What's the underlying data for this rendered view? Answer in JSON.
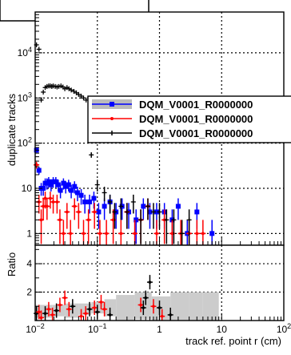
{
  "chart_data": {
    "type": "scatter",
    "x_scale": "log",
    "xlim": [
      0.01,
      100
    ],
    "x_ticks": [
      {
        "value": 0.01,
        "base": "10",
        "exp": "−2"
      },
      {
        "value": 0.1,
        "base": "10",
        "exp": "−1"
      },
      {
        "value": 1,
        "base": "1",
        "exp": ""
      },
      {
        "value": 10,
        "base": "10",
        "exp": ""
      },
      {
        "value": 100,
        "base": "10",
        "exp": "2"
      }
    ],
    "xlabel": "track ref. point r (cm)",
    "grid": true,
    "top": {
      "y_scale": "log",
      "ylim": [
        0.55,
        80000
      ],
      "ylabel": "duplicate tracks",
      "y_ticks": [
        {
          "value": 1,
          "base": "1",
          "exp": ""
        },
        {
          "value": 10,
          "base": "10",
          "exp": ""
        },
        {
          "value": 100,
          "base": "10",
          "exp": "2"
        },
        {
          "value": 1000,
          "base": "10",
          "exp": "3"
        },
        {
          "value": 10000,
          "base": "10",
          "exp": "4"
        }
      ],
      "series": [
        {
          "name": "DQM_V0001_R0000000",
          "color": "#0000ff",
          "marker": "square",
          "x": [
            0.0105,
            0.0115,
            0.0125,
            0.0135,
            0.0145,
            0.0155,
            0.0165,
            0.018,
            0.0195,
            0.0215,
            0.0235,
            0.0255,
            0.0285,
            0.031,
            0.0345,
            0.038,
            0.043,
            0.048,
            0.055,
            0.063,
            0.075,
            0.088,
            0.105,
            0.13,
            0.16,
            0.2,
            0.25,
            0.32,
            0.42,
            0.55,
            0.7,
            0.9,
            1.2,
            1.6,
            2.0,
            2.8,
            4.0,
            7.0
          ],
          "y": [
            70,
            25,
            10,
            10,
            13,
            13,
            14,
            12,
            14,
            14,
            12,
            9,
            13,
            11,
            12,
            9,
            11,
            8,
            7,
            5,
            5,
            6,
            3,
            4,
            5,
            3,
            4,
            3,
            2,
            4,
            3,
            3,
            3,
            2,
            4,
            1,
            3,
            1
          ]
        },
        {
          "name": "DQM_V0001_R0000000",
          "color": "#ff0000",
          "marker": "dot",
          "x": [
            0.0105,
            0.0115,
            0.0125,
            0.0135,
            0.0145,
            0.0155,
            0.0175,
            0.0195,
            0.0225,
            0.025,
            0.0285,
            0.0325,
            0.037,
            0.043,
            0.05,
            0.06,
            0.072,
            0.09,
            0.11,
            0.14,
            0.18,
            0.24,
            0.3,
            0.4,
            0.5,
            0.65,
            0.9,
            1.2,
            1.6,
            2.2,
            3.0,
            4.0,
            5.0
          ],
          "y": [
            33,
            5,
            2,
            4,
            6,
            4,
            6,
            5,
            5,
            2,
            1,
            3,
            1,
            4,
            3,
            1,
            2,
            3,
            1,
            1,
            2,
            1,
            3,
            1,
            2,
            4,
            1,
            2,
            1,
            1,
            1,
            1,
            1
          ]
        },
        {
          "name": "DQM_V0001_R0000000",
          "color": "#000000",
          "marker": "plus",
          "x": [
            0.0105,
            0.0115,
            0.0125,
            0.0135,
            0.0145,
            0.0155,
            0.0165,
            0.0175,
            0.0185,
            0.0195,
            0.021,
            0.0225,
            0.024,
            0.026,
            0.028,
            0.03,
            0.0325,
            0.035,
            0.038,
            0.042,
            0.046,
            0.05,
            0.055,
            0.06,
            0.066,
            0.08,
            0.1,
            0.13,
            0.16,
            0.19,
            0.24,
            0.3,
            0.38,
            0.5,
            0.65,
            0.8,
            1.0,
            1.3,
            1.7,
            2.3,
            3.0
          ],
          "y": [
            15000,
            12000,
            900,
            1350,
            1700,
            1800,
            1850,
            1850,
            1800,
            1850,
            1800,
            1750,
            1800,
            1850,
            1750,
            1600,
            1700,
            1600,
            1500,
            1400,
            1300,
            1200,
            1100,
            1000,
            900,
            55,
            12,
            8,
            5,
            3,
            4,
            3,
            5,
            2,
            4,
            3,
            3,
            2,
            2,
            1,
            2
          ]
        }
      ]
    },
    "ratio": {
      "ylabel": "Ratio",
      "ylim": [
        0,
        5.3
      ],
      "y_ticks": [
        2,
        4
      ],
      "band_color": "#cccccc",
      "points": [
        {
          "x": 0.0105,
          "y": 0.5,
          "color": "#000000"
        },
        {
          "x": 0.0115,
          "y": 0.6,
          "color": "#ff0000"
        },
        {
          "x": 0.0125,
          "y": 0.2,
          "color": "#ff0000"
        },
        {
          "x": 0.0145,
          "y": 0.5,
          "color": "#000000"
        },
        {
          "x": 0.0165,
          "y": 0.8,
          "color": "#ff0000"
        },
        {
          "x": 0.019,
          "y": 0.4,
          "color": "#ff0000"
        },
        {
          "x": 0.022,
          "y": 0.7,
          "color": "#000000"
        },
        {
          "x": 0.025,
          "y": 1.1,
          "color": "#ff0000"
        },
        {
          "x": 0.03,
          "y": 1.6,
          "color": "#ff0000"
        },
        {
          "x": 0.035,
          "y": 0.8,
          "color": "#ff0000"
        },
        {
          "x": 0.04,
          "y": 1.0,
          "color": "#000000"
        },
        {
          "x": 0.055,
          "y": 0.3,
          "color": "#ff0000"
        },
        {
          "x": 0.065,
          "y": 0.5,
          "color": "#ff0000"
        },
        {
          "x": 0.075,
          "y": 0.8,
          "color": "#000000"
        },
        {
          "x": 0.09,
          "y": 0.9,
          "color": "#ff0000"
        },
        {
          "x": 0.1,
          "y": 0.6,
          "color": "#000000"
        },
        {
          "x": 0.115,
          "y": 1.3,
          "color": "#ff0000"
        },
        {
          "x": 0.13,
          "y": 0.8,
          "color": "#ff0000"
        },
        {
          "x": 0.16,
          "y": 0.4,
          "color": "#000000"
        },
        {
          "x": 0.5,
          "y": 1.1,
          "color": "#ff0000"
        },
        {
          "x": 0.55,
          "y": 0.9,
          "color": "#000000"
        },
        {
          "x": 0.6,
          "y": 1.6,
          "color": "#000000"
        },
        {
          "x": 0.7,
          "y": 2.7,
          "color": "#000000"
        },
        {
          "x": 0.8,
          "y": 1.0,
          "color": "#ff0000"
        },
        {
          "x": 1.0,
          "y": 0.9,
          "color": "#000000"
        },
        {
          "x": 1.1,
          "y": 0.3,
          "color": "#ff0000"
        },
        {
          "x": 1.5,
          "y": 0.4,
          "color": "#000000"
        }
      ],
      "band_bins": [
        {
          "x0": 0.01,
          "x1": 0.019,
          "lo": 0.2,
          "hi": 1.1
        },
        {
          "x0": 0.019,
          "x1": 0.03,
          "lo": 0.3,
          "hi": 1.1
        },
        {
          "x0": 0.03,
          "x1": 0.05,
          "lo": 0.2,
          "hi": 1.2
        },
        {
          "x0": 0.05,
          "x1": 0.08,
          "lo": 0.4,
          "hi": 1.2
        },
        {
          "x0": 0.08,
          "x1": 0.13,
          "lo": 0.5,
          "hi": 1.3
        },
        {
          "x0": 0.13,
          "x1": 0.2,
          "lo": 0.3,
          "hi": 1.5
        },
        {
          "x0": 0.2,
          "x1": 0.4,
          "lo": 0.0,
          "hi": 1.8
        },
        {
          "x0": 0.4,
          "x1": 0.75,
          "lo": 0.1,
          "hi": 2.0
        },
        {
          "x0": 0.75,
          "x1": 1.5,
          "lo": 0.0,
          "hi": 1.7
        },
        {
          "x0": 1.5,
          "x1": 3.0,
          "lo": 0.0,
          "hi": 2.0
        },
        {
          "x0": 3.0,
          "x1": 5.0,
          "lo": 0.0,
          "hi": 2.0
        },
        {
          "x0": 5.0,
          "x1": 9.0,
          "lo": 0.0,
          "hi": 2.0
        }
      ]
    }
  }
}
